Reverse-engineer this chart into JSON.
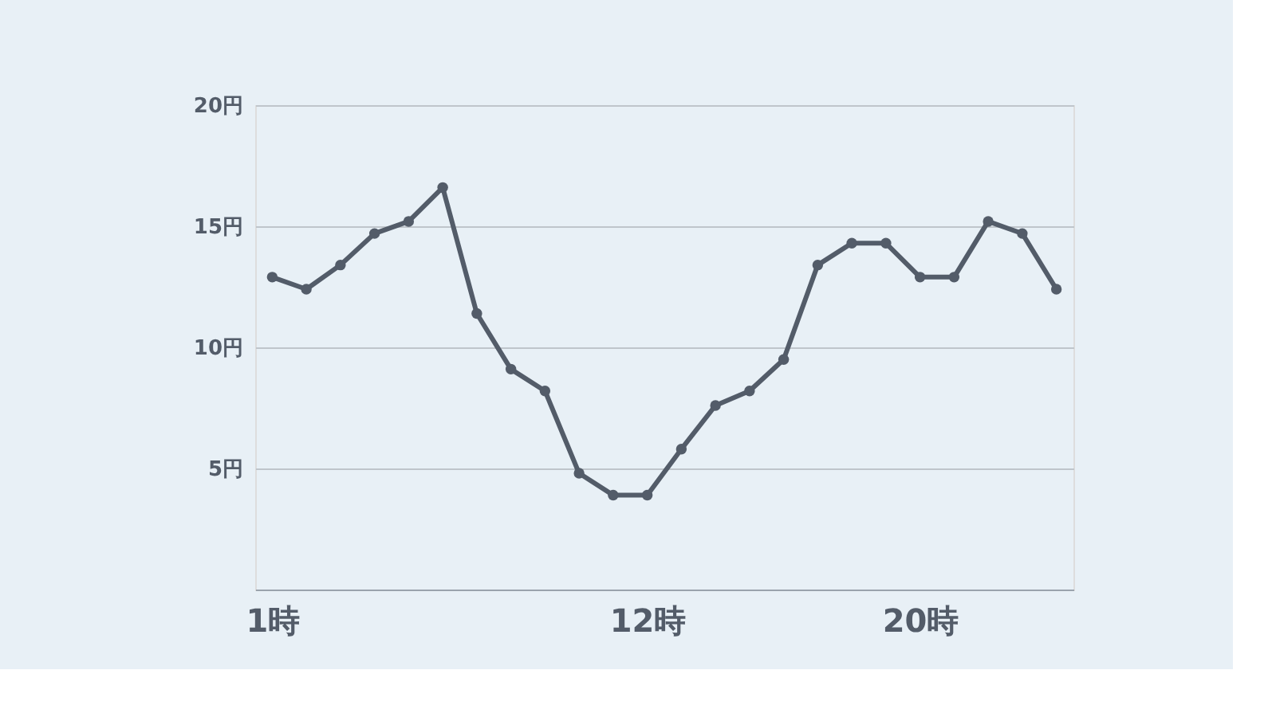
{
  "chart_data": {
    "type": "line",
    "x": [
      1,
      2,
      3,
      4,
      5,
      6,
      7,
      8,
      9,
      10,
      11,
      12,
      13,
      14,
      15,
      16,
      17,
      18,
      19,
      20,
      21,
      22,
      23,
      24
    ],
    "series": [
      {
        "color": "#535c69",
        "values": [
          12.9,
          12.4,
          13.4,
          14.7,
          15.2,
          16.6,
          11.4,
          9.1,
          8.2,
          4.8,
          3.9,
          3.9,
          5.8,
          7.6,
          8.2,
          9.5,
          13.4,
          14.3,
          14.3,
          12.9,
          12.9,
          15.2,
          14.7,
          12.4
        ]
      }
    ],
    "xlim": [
      0.5,
      24.5
    ],
    "xticks": [
      {
        "value": 1,
        "label": "1時"
      },
      {
        "value": 12,
        "label": "12時"
      },
      {
        "value": 20,
        "label": "20時"
      }
    ],
    "ylim": [
      0,
      20
    ],
    "yticks": [
      {
        "value": 5,
        "label": "5円"
      },
      {
        "value": 10,
        "label": "10円"
      },
      {
        "value": 15,
        "label": "15円"
      },
      {
        "value": 20,
        "label": "20円"
      }
    ],
    "grid": "y",
    "marker": "circle",
    "line_style": "solid"
  }
}
